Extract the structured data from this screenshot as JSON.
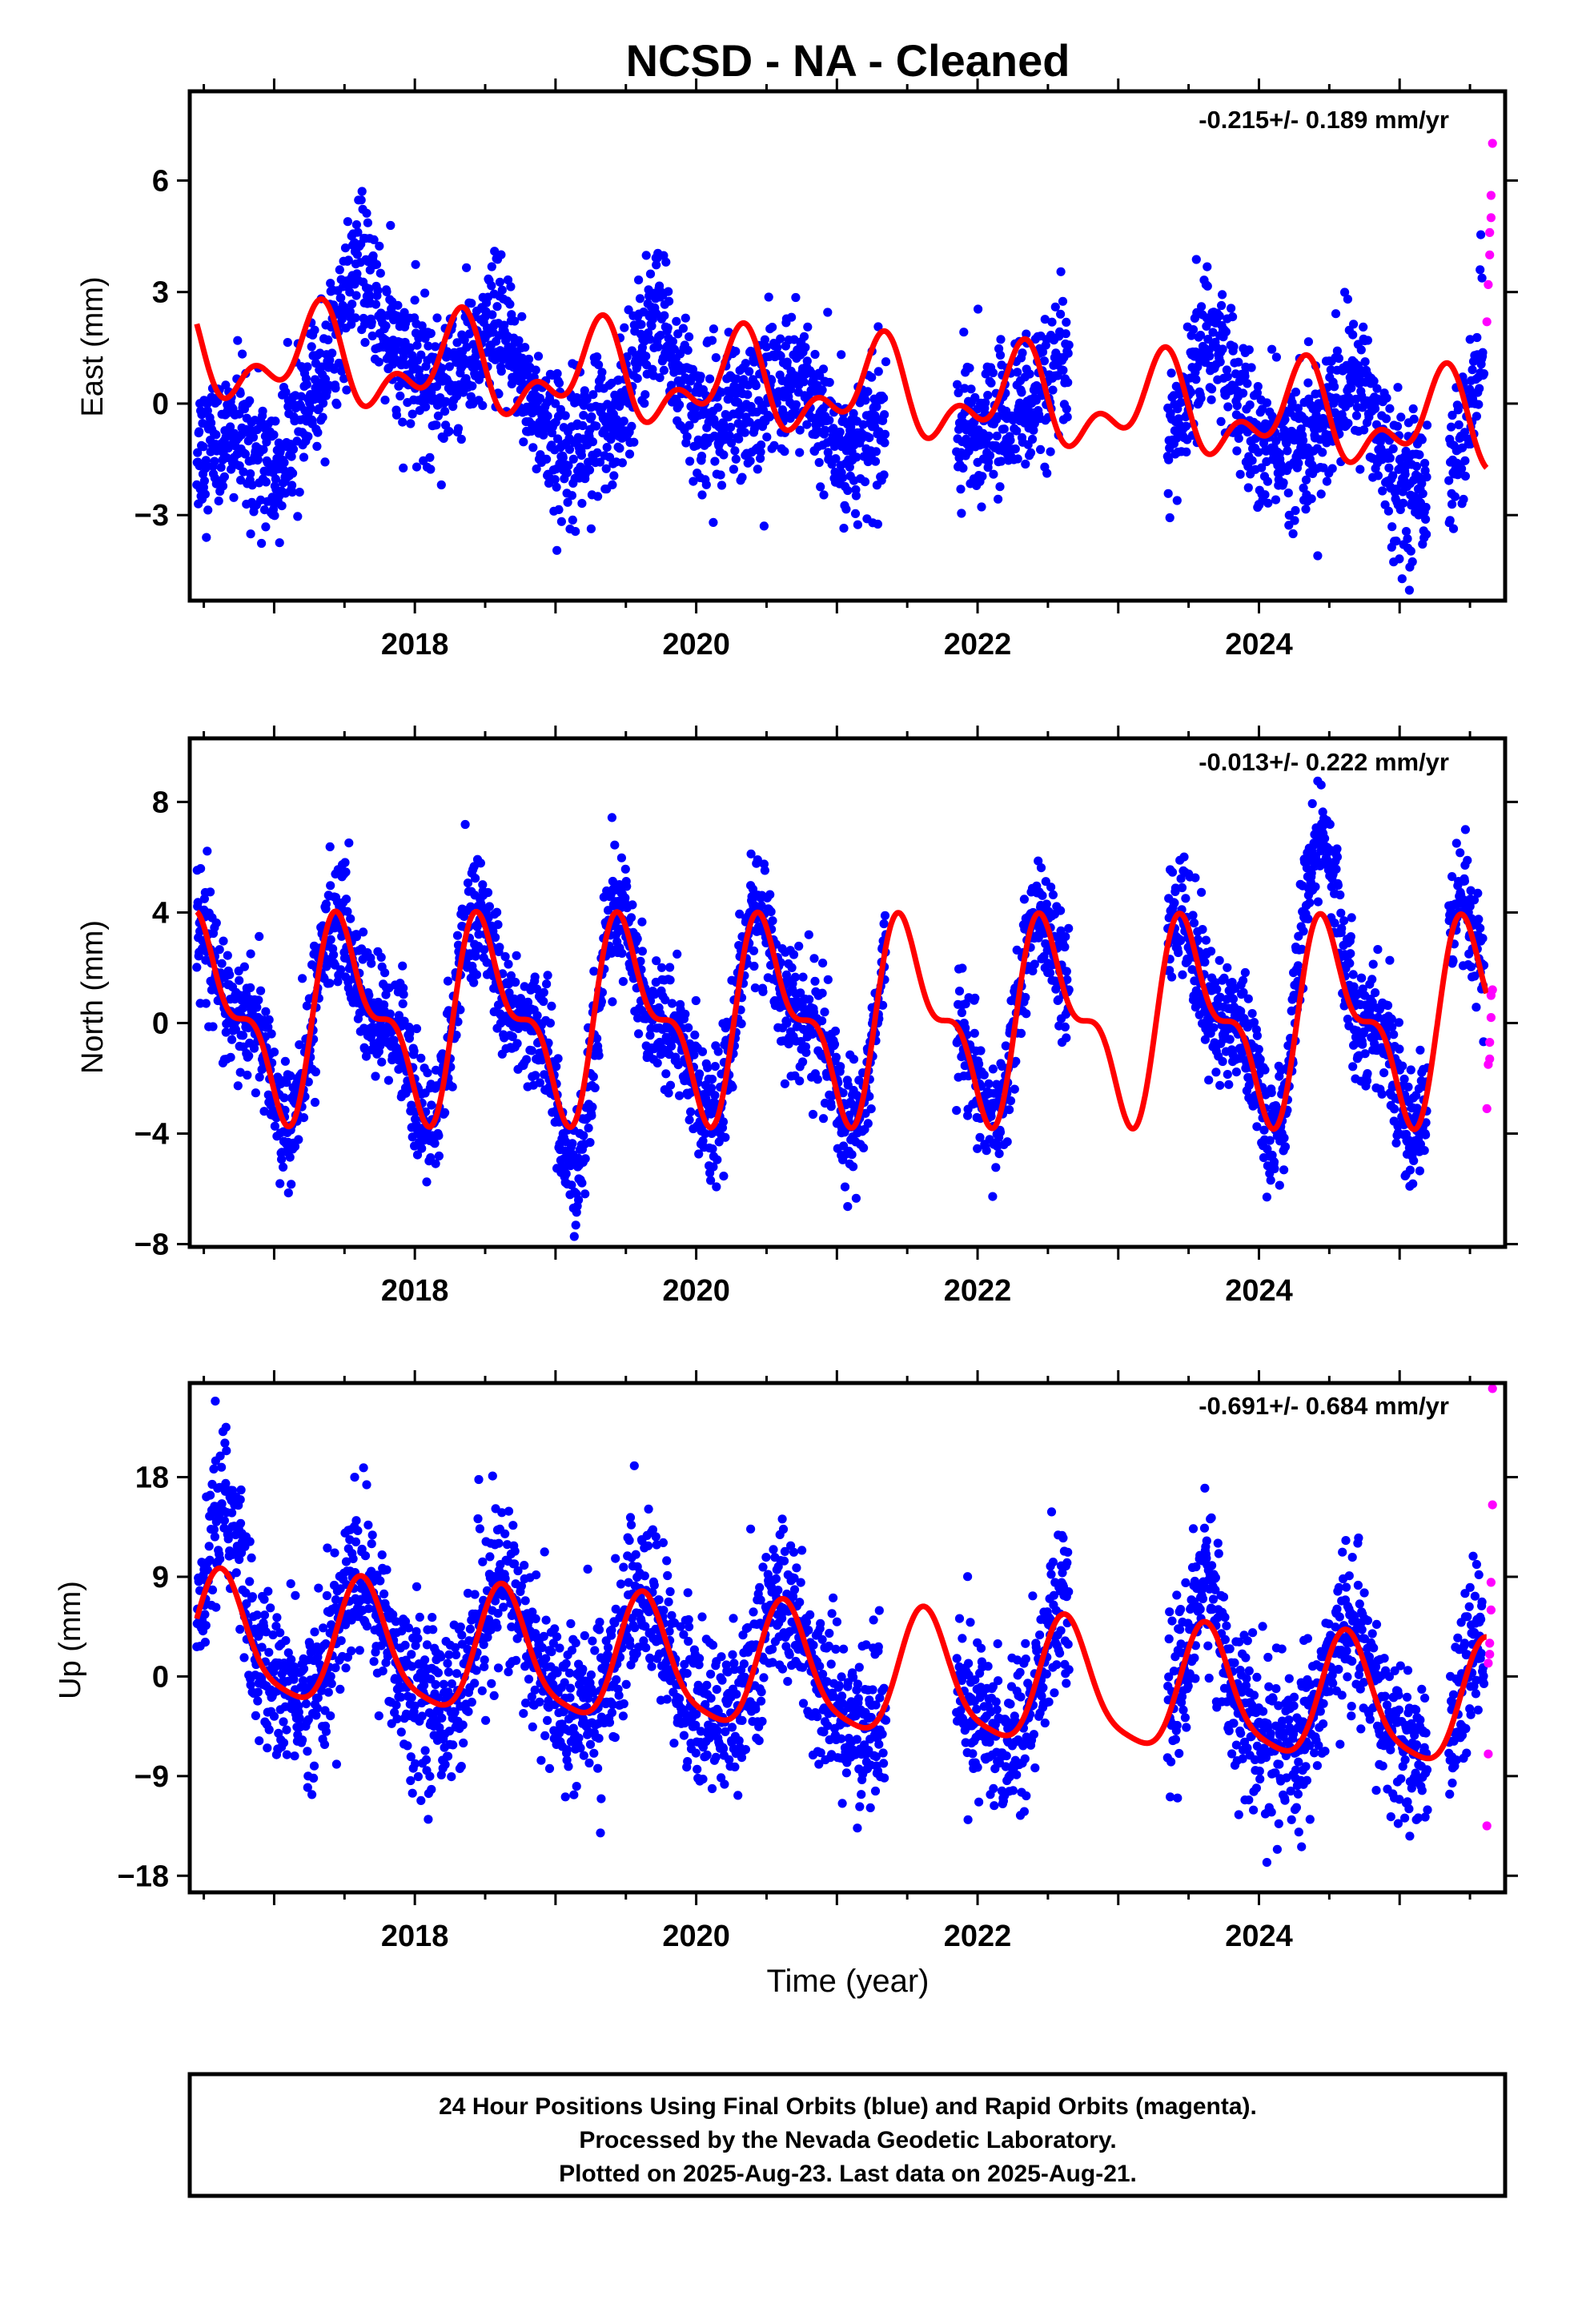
{
  "title": "NCSD  - NA - Cleaned",
  "x_axis_label": "Time (year)",
  "caption": [
    "24 Hour Positions Using Final Orbits (blue) and Rapid Orbits (magenta).",
    "Processed by the Nevada Geodetic Laboratory.",
    "Plotted on 2025-Aug-23. Last data on 2025-Aug-21."
  ],
  "colors": {
    "final": "#0000ff",
    "rapid": "#ff00ff",
    "model": "#ff0000",
    "frame": "#000000"
  },
  "chart_data": [
    {
      "type": "scatter",
      "component": "East",
      "ylabel": "East (mm)",
      "rate_label": "-0.215+/- 0.189 mm/yr",
      "xlim": [
        2016.4,
        2025.75
      ],
      "ylim": [
        -5.3,
        8.4
      ],
      "x_ticks": [
        2018,
        2020,
        2022,
        2024
      ],
      "y_ticks": [
        -3,
        0,
        3,
        6
      ],
      "data_spans": [
        [
          2016.45,
          2021.35
        ],
        [
          2021.85,
          2022.65
        ],
        [
          2023.35,
          2025.2
        ],
        [
          2025.35,
          2025.6
        ]
      ],
      "scatter_noise_sd": 0.95,
      "series": [
        {
          "name": "Final Orbits (blue)",
          "style": "points",
          "anchors": [
            [
              2016.45,
              -1.2
            ],
            [
              2016.75,
              -0.8
            ],
            [
              2017.0,
              -2.0
            ],
            [
              2017.3,
              0.5
            ],
            [
              2017.6,
              3.8
            ],
            [
              2017.9,
              1.0
            ],
            [
              2018.2,
              0.5
            ],
            [
              2018.6,
              2.0
            ],
            [
              2019.0,
              -1.2
            ],
            [
              2019.4,
              -0.5
            ],
            [
              2019.7,
              2.5
            ],
            [
              2020.0,
              -0.5
            ],
            [
              2020.4,
              0.0
            ],
            [
              2020.7,
              1.0
            ],
            [
              2021.0,
              -1.2
            ],
            [
              2021.35,
              -0.6
            ],
            [
              2021.85,
              -1.0
            ],
            [
              2022.2,
              -0.3
            ],
            [
              2022.65,
              1.0
            ],
            [
              2023.35,
              -1.5
            ],
            [
              2023.65,
              2.0
            ],
            [
              2024.0,
              -1.2
            ],
            [
              2024.4,
              -1.0
            ],
            [
              2024.7,
              1.0
            ],
            [
              2025.0,
              -2.2
            ],
            [
              2025.35,
              -2.0
            ],
            [
              2025.6,
              1.2
            ]
          ]
        },
        {
          "name": "Rapid Orbits (magenta)",
          "style": "points",
          "points": [
            [
              2025.62,
              2.2
            ],
            [
              2025.63,
              3.2
            ],
            [
              2025.64,
              4.0
            ],
            [
              2025.64,
              4.6
            ],
            [
              2025.65,
              5.0
            ],
            [
              2025.65,
              5.6
            ],
            [
              2025.66,
              7.0
            ]
          ]
        },
        {
          "name": "Model",
          "style": "line",
          "model": {
            "mean": 0.36,
            "rate": -0.215,
            "t0": 2021.0,
            "annual_amp": 1.0,
            "annual_phase": 0.3,
            "semi_amp": 0.7,
            "semi_phase": 0.35
          }
        }
      ]
    },
    {
      "type": "scatter",
      "component": "North",
      "ylabel": "North (mm)",
      "rate_label": "-0.013+/- 0.222 mm/yr",
      "xlim": [
        2016.4,
        2025.75
      ],
      "ylim": [
        -8.1,
        10.3
      ],
      "x_ticks": [
        2018,
        2020,
        2022,
        2024
      ],
      "y_ticks": [
        -8,
        -4,
        0,
        4,
        8
      ],
      "data_spans": [
        [
          2016.45,
          2021.35
        ],
        [
          2021.85,
          2022.65
        ],
        [
          2023.35,
          2025.2
        ],
        [
          2025.35,
          2025.6
        ]
      ],
      "scatter_noise_sd": 1.1,
      "series": [
        {
          "name": "Final Orbits (blue)",
          "style": "points",
          "model": {
            "mean": 0.1,
            "rate": 0.0,
            "t0": 2021.0,
            "annual_amp": 3.0,
            "annual_phase": 0.52,
            "semi_amp": 1.5,
            "semi_phase": 0.395
          },
          "anomalies": [
            [
              2019.0,
              2019.35,
              -2.0
            ],
            [
              2024.2,
              2024.7,
              2.5
            ]
          ]
        },
        {
          "name": "Rapid Orbits (magenta)",
          "style": "points",
          "points": [
            [
              2025.62,
              -3.1
            ],
            [
              2025.63,
              -1.5
            ],
            [
              2025.64,
              -1.3
            ],
            [
              2025.64,
              -0.7
            ],
            [
              2025.65,
              0.2
            ],
            [
              2025.65,
              1.0
            ],
            [
              2025.66,
              1.2
            ]
          ]
        },
        {
          "name": "Model",
          "style": "line",
          "model": {
            "mean": 0.1,
            "rate": -0.013,
            "t0": 2021.0,
            "annual_amp": 3.0,
            "annual_phase": 0.52,
            "semi_amp": 1.5,
            "semi_phase": 0.395
          }
        }
      ]
    },
    {
      "type": "scatter",
      "component": "Up",
      "ylabel": "Up (mm)",
      "rate_label": "-0.691+/- 0.684 mm/yr",
      "xlim": [
        2016.4,
        2025.75
      ],
      "ylim": [
        -19.5,
        26.5
      ],
      "x_ticks": [
        2018,
        2020,
        2022,
        2024
      ],
      "y_ticks": [
        -18,
        -9,
        0,
        9,
        18
      ],
      "data_spans": [
        [
          2016.45,
          2021.35
        ],
        [
          2021.85,
          2022.65
        ],
        [
          2023.35,
          2025.2
        ],
        [
          2025.35,
          2025.6
        ]
      ],
      "scatter_noise_sd": 3.6,
      "series": [
        {
          "name": "Final Orbits (blue)",
          "style": "points",
          "model": {
            "mean": 0.1,
            "rate": -0.691,
            "t0": 2021.0,
            "annual_amp": 5.5,
            "annual_phase": 0.63,
            "semi_amp": 1.2,
            "semi_phase": 0.1
          },
          "anomalies": [
            [
              2016.5,
              2016.85,
              6.0
            ],
            [
              2023.5,
              2023.75,
              4.0
            ]
          ]
        },
        {
          "name": "Rapid Orbits (magenta)",
          "style": "points",
          "points": [
            [
              2025.62,
              -13.5
            ],
            [
              2025.63,
              -7.0
            ],
            [
              2025.63,
              1.2
            ],
            [
              2025.64,
              2.0
            ],
            [
              2025.64,
              3.0
            ],
            [
              2025.65,
              6.0
            ],
            [
              2025.65,
              8.5
            ],
            [
              2025.66,
              15.5
            ],
            [
              2025.66,
              26.0
            ]
          ]
        },
        {
          "name": "Model",
          "style": "line",
          "model": {
            "mean": 0.1,
            "rate": -0.691,
            "t0": 2021.0,
            "annual_amp": 5.5,
            "annual_phase": 0.63,
            "semi_amp": 1.2,
            "semi_phase": 0.1
          }
        }
      ]
    }
  ]
}
